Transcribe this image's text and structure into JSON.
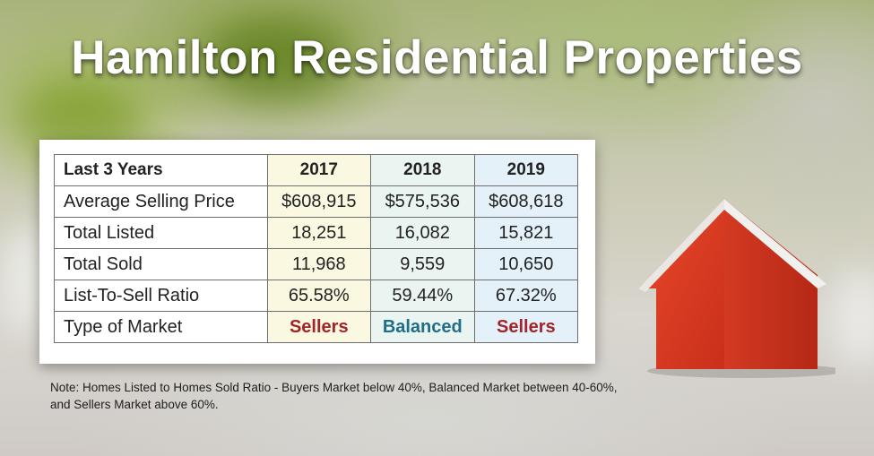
{
  "title": "Hamilton Residential Properties",
  "table": {
    "header": {
      "label": "Last 3 Years",
      "years": [
        "2017",
        "2018",
        "2019"
      ]
    },
    "rows": [
      {
        "label": "Average Selling Price",
        "values": [
          "$608,915",
          "$575,536",
          "$608,618"
        ]
      },
      {
        "label": "Total Listed",
        "values": [
          "18,251",
          "16,082",
          "15,821"
        ]
      },
      {
        "label": "Total Sold",
        "values": [
          "11,968",
          "9,559",
          "10,650"
        ]
      },
      {
        "label": "List-To-Sell Ratio",
        "values": [
          "65.58%",
          "59.44%",
          "67.32%"
        ]
      },
      {
        "label": "Type of Market",
        "values": [
          "Sellers",
          "Balanced",
          "Sellers"
        ]
      }
    ]
  },
  "note": "Note: Homes Listed to Homes Sold Ratio - Buyers Market below 40%, Balanced Market between 40-60%, and Sellers Market above 60%.",
  "colors": {
    "sellers": "#a1242b",
    "balanced": "#1f6d87",
    "col_2017": "#fbf8e1",
    "col_2018": "#eaf5f1",
    "col_2019": "#e4f1f8",
    "house_red": "#d8391f"
  },
  "icons": {
    "house": "house-icon"
  }
}
